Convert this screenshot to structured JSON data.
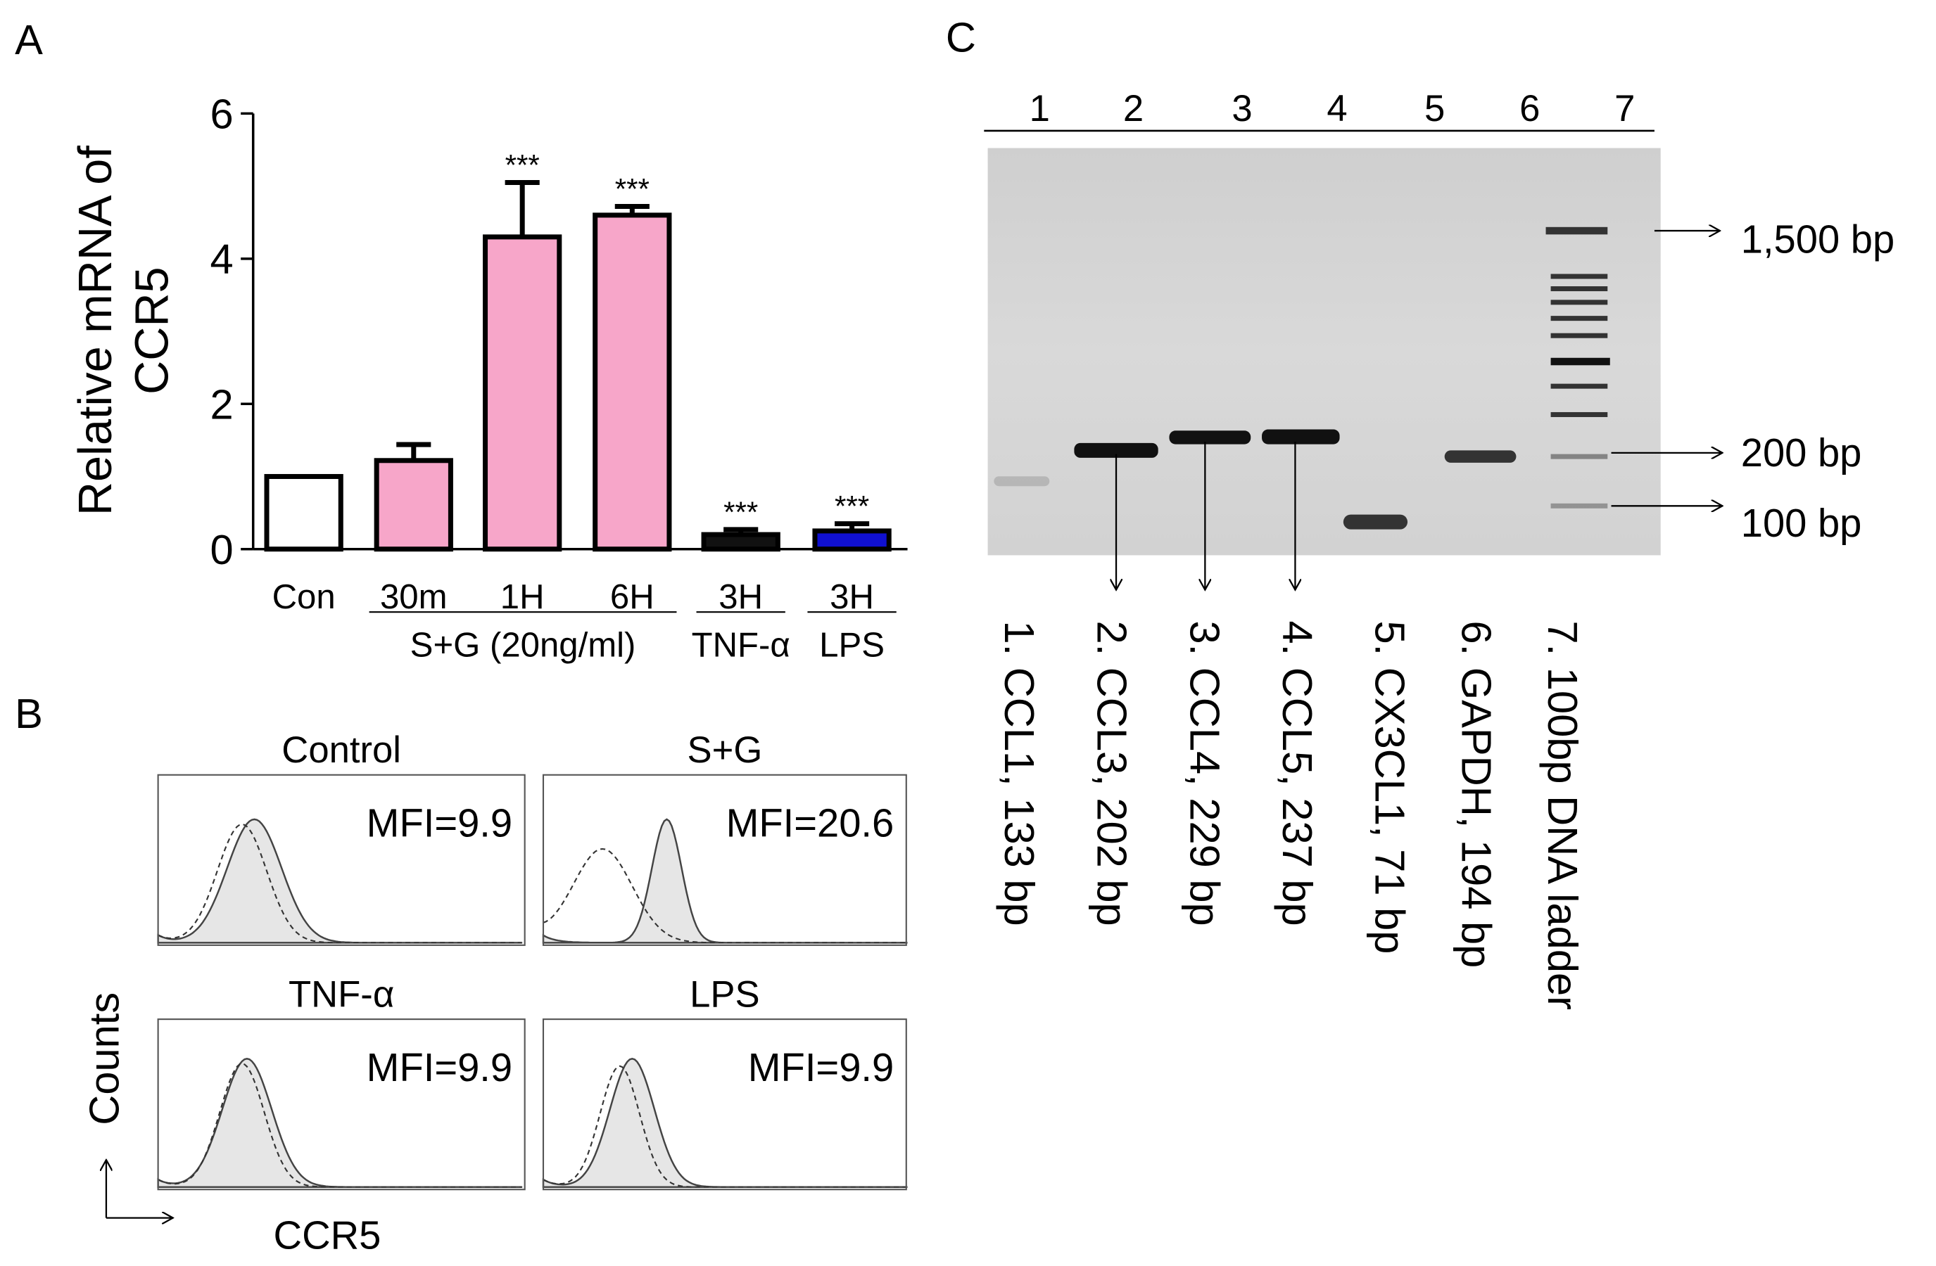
{
  "chart_data": {
    "type": "bar",
    "panel": "A",
    "y_label_lines": [
      "Relative mRNA of",
      "CCR5"
    ],
    "categories": [
      "Con",
      "30m",
      "1H",
      "6H",
      "3H",
      "3H"
    ],
    "values": [
      1.0,
      1.22,
      4.3,
      4.6,
      0.2,
      0.25
    ],
    "errors": [
      0,
      0.22,
      0.75,
      0.12,
      0.07,
      0.1
    ],
    "colors": [
      "#ffffff",
      "#f7a6c9",
      "#f7a6c9",
      "#f7a6c9",
      "#111111",
      "#1010d0"
    ],
    "significance": [
      null,
      null,
      "***",
      "***",
      "***",
      "***"
    ],
    "groups": [
      {
        "label": "S+G (20ng/ml)",
        "from": 1,
        "to": 3
      },
      {
        "label": "TNF-α",
        "from": 4,
        "to": 4
      },
      {
        "label": "LPS",
        "from": 5,
        "to": 5
      }
    ],
    "ylim": [
      0,
      6
    ],
    "yticks": [
      0,
      2,
      4,
      6
    ]
  },
  "panel_b": {
    "panel": "B",
    "histograms": [
      {
        "title": "Control",
        "mfi": "MFI=9.9"
      },
      {
        "title": "S+G",
        "mfi": "MFI=20.6"
      },
      {
        "title": "TNF-α",
        "mfi": "MFI=9.9"
      },
      {
        "title": "LPS",
        "mfi": "MFI=9.9"
      }
    ],
    "y_label": "Counts",
    "x_label": "CCR5"
  },
  "panel_c": {
    "panel": "C",
    "lanes": [
      "1",
      "2",
      "3",
      "4",
      "5",
      "6",
      "7"
    ],
    "markers": [
      "1,500 bp",
      "200 bp",
      "100 bp"
    ],
    "lane_descriptions": [
      "1. CCL1, 133 bp",
      "2. CCL3, 202 bp",
      "3. CCL4, 229 bp",
      "4. CCL5, 237 bp",
      "5. CX3CL1, 71 bp",
      "6. GAPDH, 194 bp",
      "7. 100bp DNA ladder"
    ]
  }
}
